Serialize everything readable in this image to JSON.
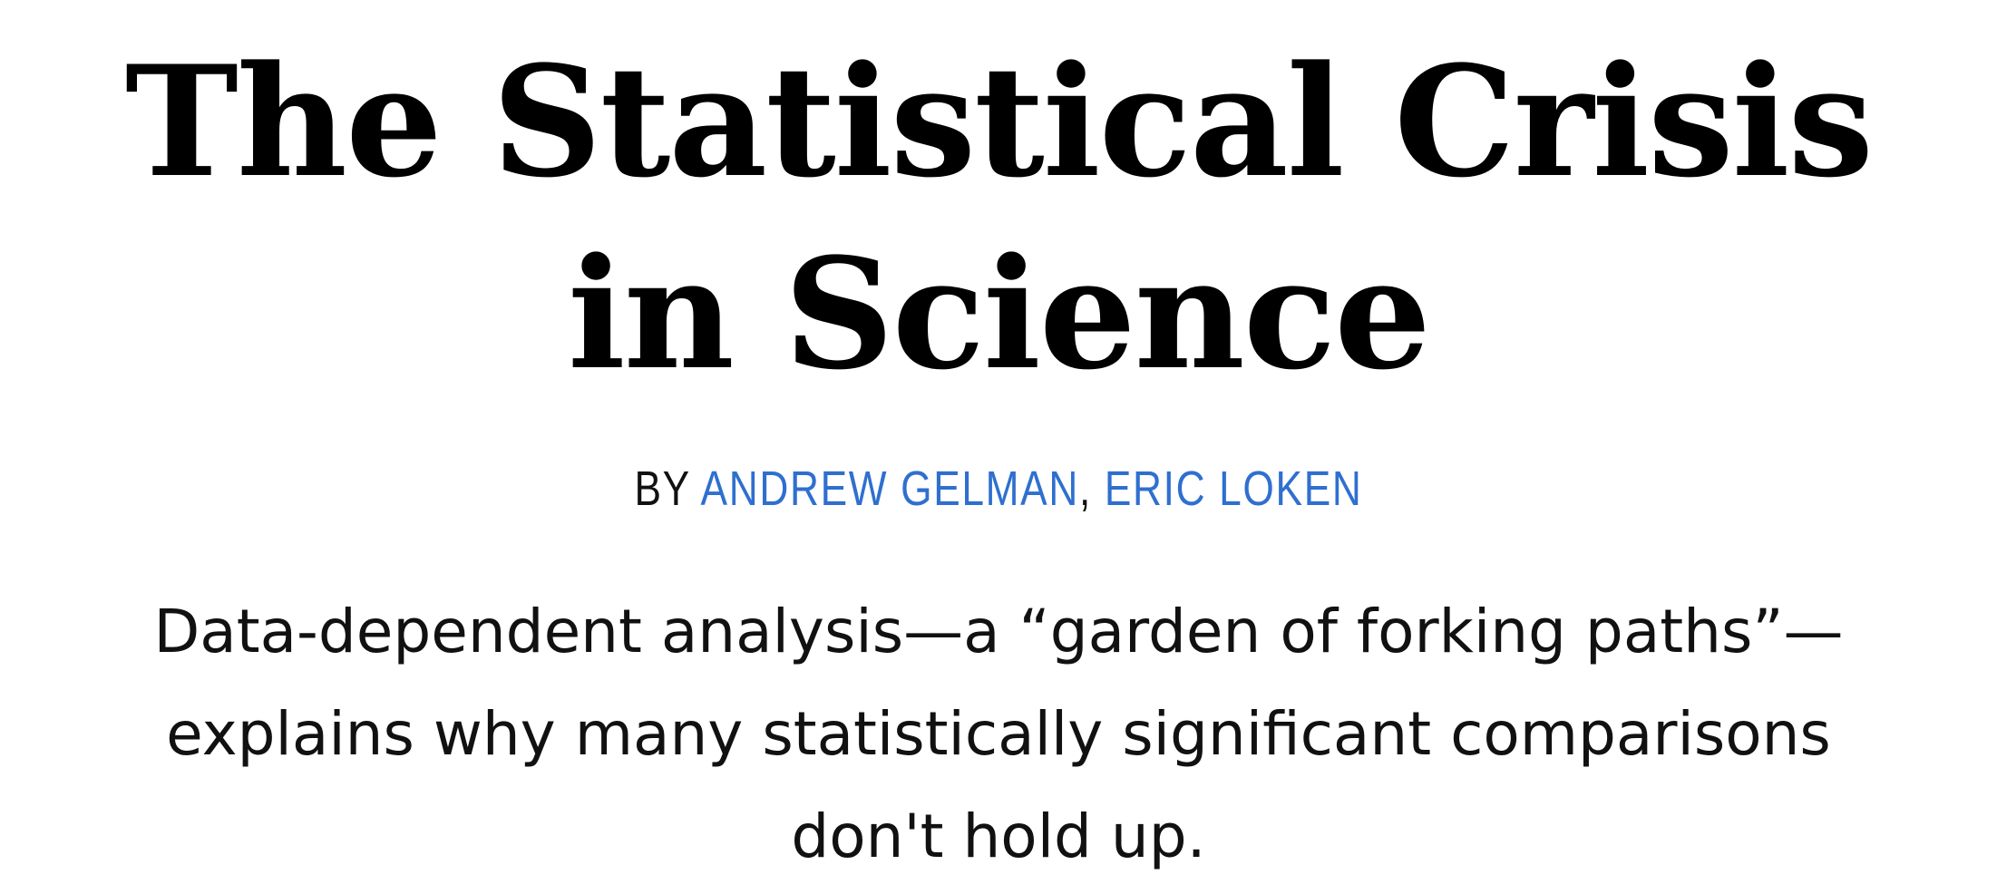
{
  "article": {
    "title": "The Statistical Crisis in Science",
    "byline": {
      "prefix": "BY",
      "authors": [
        "ANDREW GELMAN",
        "ERIC LOKEN"
      ],
      "separator": ","
    },
    "dek": "Data-dependent analysis—a “garden of forking paths”—explains why many statistically significant comparisons don't hold up."
  },
  "colors": {
    "text": "#000000",
    "author_link": "#2f6fcf",
    "background": "#ffffff"
  }
}
